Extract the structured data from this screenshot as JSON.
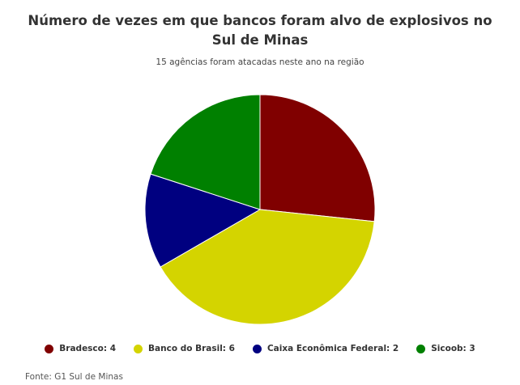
{
  "chart_data": {
    "type": "pie",
    "title": "Número de vezes em que bancos foram alvo de explosivos no Sul de Minas",
    "subtitle": "15 agências foram atacadas neste ano na região",
    "slices": [
      {
        "label": "Bradesco",
        "value": 4,
        "color": "#800000",
        "legend": "Bradesco: 4"
      },
      {
        "label": "Banco do Brasil",
        "value": 6,
        "color": "#d4d400",
        "legend": "Banco do Brasil: 6"
      },
      {
        "label": "Caixa Econômica Federal",
        "value": 2,
        "color": "#000080",
        "legend": "Caixa Econômica Federal: 2"
      },
      {
        "label": "Sicoob",
        "value": 3,
        "color": "#008000",
        "legend": "Sicoob: 3"
      }
    ],
    "legend_position": "bottom",
    "source": "Fonte: G1 Sul de Minas"
  }
}
